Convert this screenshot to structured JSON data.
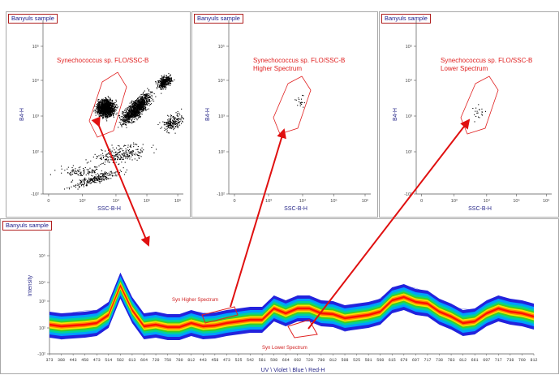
{
  "panels": [
    {
      "title": "Banyuls sample",
      "gate_lines": [
        "Synechococcus sp. FLO/SSC-B"
      ],
      "ylabel": "B4-H",
      "xlabel": "SSC-B-H",
      "yticks": [
        "10⁵",
        "10⁴",
        "10³",
        "10²",
        "-10²"
      ],
      "xticks": [
        "0",
        "10³",
        "10⁴",
        "10⁵",
        "10⁶"
      ]
    },
    {
      "title": "Banyuls sample",
      "gate_lines": [
        "Synechococcus sp. FLO/SSC-B",
        "Higher Spectrum"
      ],
      "ylabel": "B4-H",
      "xlabel": "SSC-B-H",
      "yticks": [
        "10⁵",
        "10⁴",
        "10³",
        "10²",
        "-10²"
      ],
      "xticks": [
        "0",
        "10³",
        "10⁴",
        "10⁵",
        "10⁶"
      ]
    },
    {
      "title": "Banyuls sample",
      "gate_lines": [
        "Synechococcus sp. FLO/SSC-B",
        "Lower Spectrum"
      ],
      "ylabel": "B4-H",
      "xlabel": "SSC-B-H",
      "yticks": [
        "10⁵",
        "10⁴",
        "10³",
        "10²",
        "-10²"
      ],
      "xticks": [
        "0",
        "10³",
        "10⁴",
        "10⁵",
        "10⁶"
      ]
    }
  ],
  "spectrum": {
    "title": "Banyuls sample",
    "ylabel": "Intensity",
    "xlabel": "UV \\ Violet \\ Blue \\ Red-H",
    "yticks": [
      "10⁵",
      "10⁴",
      "10³",
      "10²",
      "-10²"
    ],
    "annotations": {
      "higher": "Syn Higher Spectrum",
      "lower": "Syn Lower Spectrum"
    },
    "channels": "373 388 443 458 473 514 582 613 664 720 750 780 812 443 458 473 525 542 581 598 664 692 720 780 812 508 525 581 598 615 679 697 717 738 783 812 661 697 717 738 760 812"
  },
  "colors": {
    "gate": "#e02020",
    "arrow": "#e01010",
    "dots": "#000000",
    "spectrum_outline": "#1414c8",
    "spectrum_core": [
      "#2222dd",
      "#00a0ff",
      "#00d0a0",
      "#40d020",
      "#ffe000",
      "#ff8000",
      "#ff1000"
    ]
  }
}
